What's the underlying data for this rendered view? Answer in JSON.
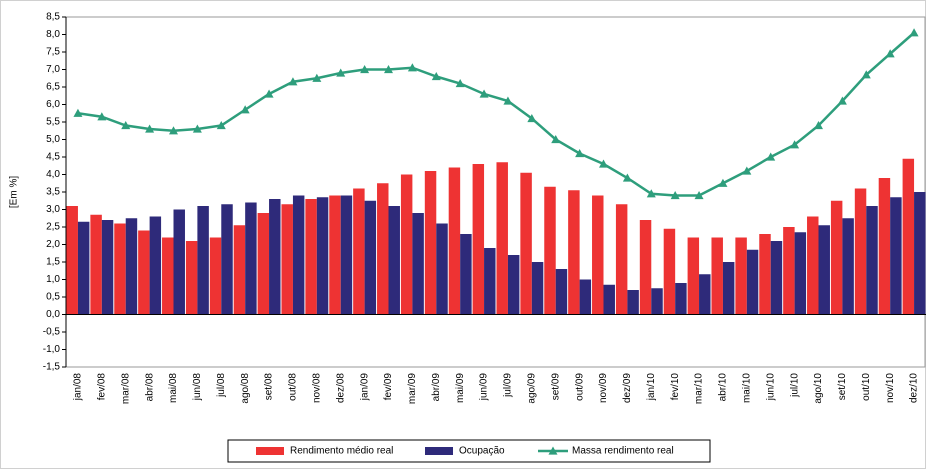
{
  "chart_data": {
    "type": "bar-line",
    "ylabel": "[Em %]",
    "categories": [
      "jan/08",
      "fev/08",
      "mar/08",
      "abr/08",
      "mai/08",
      "jun/08",
      "jul/08",
      "ago/08",
      "set/08",
      "out/08",
      "nov/08",
      "dez/08",
      "jan/09",
      "fev/09",
      "mar/09",
      "abr/09",
      "mai/09",
      "jun/09",
      "jul/09",
      "ago/09",
      "set/09",
      "out/09",
      "nov/09",
      "dez/09",
      "jan/10",
      "fev/10",
      "mar/10",
      "abr/10",
      "mai/10",
      "jun/10",
      "jul/10",
      "ago/10",
      "set/10",
      "out/10",
      "nov/10",
      "dez/10"
    ],
    "series": [
      {
        "name": "Rendimento médio real",
        "type": "bar",
        "color": "#ee3333",
        "values": [
          3.1,
          2.85,
          2.6,
          2.4,
          2.2,
          2.1,
          2.2,
          2.55,
          2.9,
          3.15,
          3.3,
          3.4,
          3.6,
          3.75,
          4.0,
          4.1,
          4.2,
          4.3,
          4.35,
          4.05,
          3.65,
          3.55,
          3.4,
          3.15,
          2.7,
          2.45,
          2.2,
          2.2,
          2.2,
          2.3,
          2.5,
          2.8,
          3.25,
          3.6,
          3.9,
          4.45
        ]
      },
      {
        "name": "Ocupação",
        "type": "bar",
        "color": "#2e2a7a",
        "values": [
          2.65,
          2.7,
          2.75,
          2.8,
          3.0,
          3.1,
          3.15,
          3.2,
          3.3,
          3.4,
          3.35,
          3.4,
          3.25,
          3.1,
          2.9,
          2.6,
          2.3,
          1.9,
          1.7,
          1.5,
          1.3,
          1.0,
          0.85,
          0.7,
          0.75,
          0.9,
          1.15,
          1.5,
          1.85,
          2.1,
          2.35,
          2.55,
          2.75,
          3.1,
          3.35,
          3.5
        ]
      },
      {
        "name": "Massa rendimento real",
        "type": "line",
        "color": "#2e9e7c",
        "values": [
          5.75,
          5.65,
          5.4,
          5.3,
          5.25,
          5.3,
          5.4,
          5.85,
          6.3,
          6.65,
          6.75,
          6.9,
          7.0,
          7.0,
          7.05,
          6.8,
          6.6,
          6.3,
          6.1,
          5.6,
          5.0,
          4.6,
          4.3,
          3.9,
          3.45,
          3.4,
          3.4,
          3.75,
          4.1,
          4.5,
          4.85,
          5.4,
          6.1,
          6.85,
          7.45,
          8.05
        ]
      }
    ],
    "ylim": [
      -1.5,
      8.5
    ],
    "yticks": [
      {
        "value": -1.5,
        "label": "-1,5"
      },
      {
        "value": -1,
        "label": "-1,0"
      },
      {
        "value": -0.5,
        "label": "-0,5"
      },
      {
        "value": 0,
        "label": "0,0"
      },
      {
        "value": 0.5,
        "label": "0,5"
      },
      {
        "value": 1,
        "label": "1,0"
      },
      {
        "value": 1.5,
        "label": "1,5"
      },
      {
        "value": 2,
        "label": "2,0"
      },
      {
        "value": 2.5,
        "label": "2,5"
      },
      {
        "value": 3,
        "label": "3,0"
      },
      {
        "value": 3.5,
        "label": "3,5"
      },
      {
        "value": 4,
        "label": "4,0"
      },
      {
        "value": 4.5,
        "label": "4,5"
      },
      {
        "value": 5,
        "label": "5,0"
      },
      {
        "value": 5.5,
        "label": "5,5"
      },
      {
        "value": 6,
        "label": "6,0"
      },
      {
        "value": 6.5,
        "label": "6,5"
      },
      {
        "value": 7,
        "label": "7,0"
      },
      {
        "value": 7.5,
        "label": "7,5"
      },
      {
        "value": 8,
        "label": "8,0"
      },
      {
        "value": 8.5,
        "label": "8,5"
      }
    ],
    "legend": "bottom"
  }
}
